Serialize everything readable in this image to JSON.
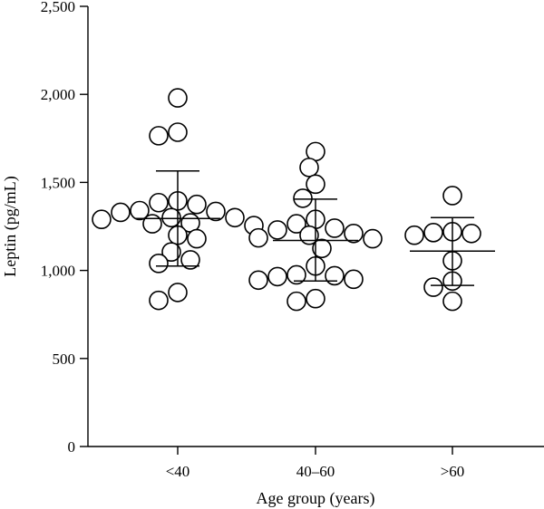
{
  "chart_data": {
    "type": "scatter",
    "xlabel": "Age group (years)",
    "ylabel": "Leptin (pg/mL)",
    "ylim": [
      0,
      2500
    ],
    "yticks": [
      0,
      500,
      1000,
      1500,
      2000,
      2500
    ],
    "ytick_labels": [
      "0",
      "500",
      "1,000",
      "1,500",
      "2,000",
      "2,500"
    ],
    "categories": [
      "<40",
      "40–60",
      ">60"
    ],
    "grid": false,
    "groups": [
      {
        "category": "<40",
        "mean": 1295,
        "sd_upper": 1565,
        "sd_lower": 1025,
        "values": [
          1980,
          1785,
          1765,
          1395,
          1385,
          1375,
          1340,
          1335,
          1330,
          1300,
          1300,
          1290,
          1270,
          1265,
          1255,
          1200,
          1180,
          1105,
          1060,
          1040,
          875,
          830
        ]
      },
      {
        "category": "40–60",
        "mean": 1170,
        "sd_upper": 1405,
        "sd_lower": 940,
        "values": [
          1675,
          1585,
          1490,
          1410,
          1290,
          1265,
          1240,
          1230,
          1210,
          1200,
          1185,
          1180,
          1125,
          1025,
          975,
          970,
          965,
          950,
          945,
          840,
          825
        ]
      },
      {
        "category": ">60",
        "mean": 1110,
        "sd_upper": 1300,
        "sd_lower": 915,
        "values": [
          1425,
          1220,
          1215,
          1210,
          1200,
          1055,
          940,
          905,
          825
        ]
      }
    ]
  }
}
